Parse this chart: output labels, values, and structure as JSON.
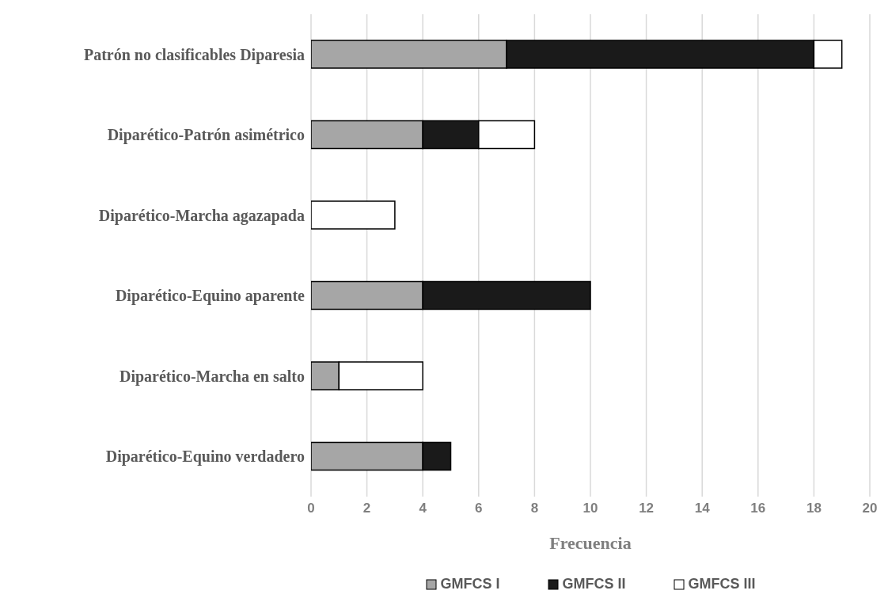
{
  "chart_data": {
    "type": "bar",
    "orientation": "horizontal",
    "stacked": true,
    "xlabel": "Frecuencia",
    "categories": [
      "Patrón no clasificables Diparesia",
      "Diparético-Patrón asimétrico",
      "Diparético-Marcha agazapada",
      "Diparético-Equino aparente",
      "Diparético-Marcha en salto",
      "Diparético-Equino verdadero"
    ],
    "series": [
      {
        "name": "GMFCS I",
        "color": "#a6a6a6",
        "values": [
          7,
          4,
          0,
          4,
          1,
          4
        ]
      },
      {
        "name": "GMFCS II",
        "color": "#1a1a1a",
        "values": [
          11,
          2,
          0,
          6,
          0,
          1
        ]
      },
      {
        "name": "GMFCS III",
        "color": "#ffffff",
        "values": [
          1,
          2,
          3,
          0,
          3,
          0
        ]
      }
    ],
    "xlim": [
      0,
      20
    ],
    "xticks": [
      0,
      2,
      4,
      6,
      8,
      10,
      12,
      14,
      16,
      18,
      20
    ],
    "grid": "x",
    "legend": "bottom"
  }
}
